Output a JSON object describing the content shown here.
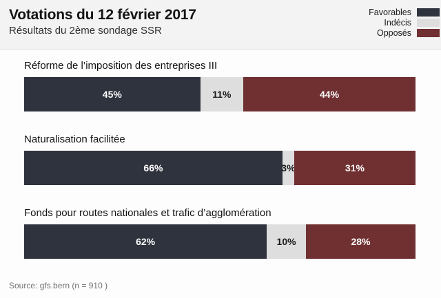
{
  "header": {
    "title": "Votations du 12 février 2017",
    "subtitle": "Résultats du 2ème sondage SSR"
  },
  "legend": {
    "position": "top-right",
    "items": [
      {
        "label": "Favorables",
        "color": "#2e333d"
      },
      {
        "label": "Indécis",
        "color": "#dedede"
      },
      {
        "label": "Opposés",
        "color": "#703031"
      }
    ]
  },
  "chart_data": {
    "type": "bar",
    "variant": "horizontal-stacked-100",
    "title": "Votations du 12 février 2017",
    "subtitle": "Résultats du 2ème sondage SSR",
    "categories": [
      "Réforme de l’imposition des entreprises III",
      "Naturalisation facilitée",
      "Fonds pour routes nationales et trafic d’agglomération"
    ],
    "series": [
      {
        "name": "Favorables",
        "color": "#2e333d",
        "label_color": "#ffffff",
        "values": [
          45,
          66,
          62
        ]
      },
      {
        "name": "Indécis",
        "color": "#dedede",
        "label_color": "#1a1a1a",
        "values": [
          11,
          3,
          10
        ]
      },
      {
        "name": "Opposés",
        "color": "#703031",
        "label_color": "#ffffff",
        "values": [
          44,
          31,
          28
        ]
      }
    ],
    "value_suffix": "%",
    "xlim": [
      0,
      100
    ],
    "grid": false,
    "legend_position": "top-right"
  },
  "footer": {
    "source": "Source: gfs.bern (n = 910 )"
  },
  "colors": {
    "header_background": "#f3f3f3",
    "page_background": "#fdfdfd",
    "favorables": "#2e333d",
    "indecis": "#dedede",
    "opposes": "#703031",
    "source_text": "#6f6f6f"
  }
}
